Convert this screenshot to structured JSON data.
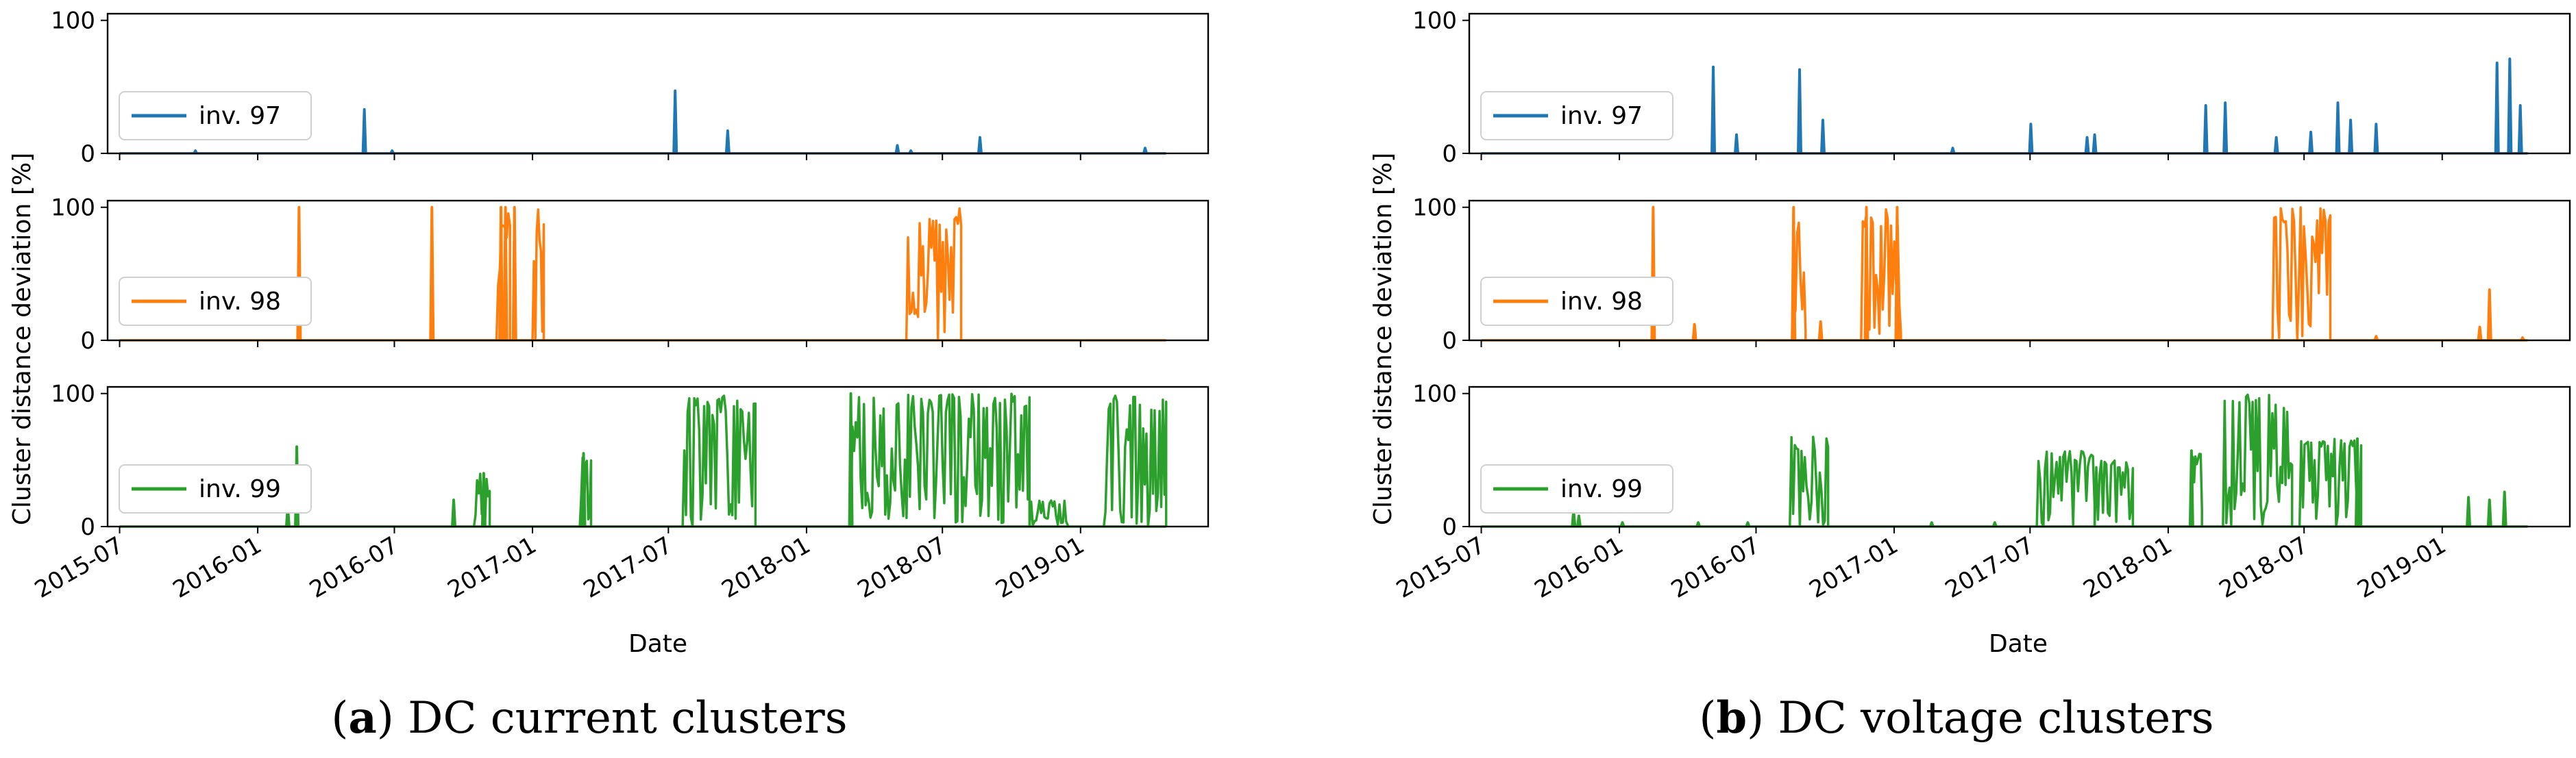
{
  "chart_data": [
    {
      "type": "line",
      "panel": "a",
      "caption_letter": "a",
      "caption_text": "DC current clusters",
      "xlabel": "Date",
      "ylabel": "Cluster distance deviation [%]",
      "ylim": [
        0,
        105
      ],
      "xlim": [
        "2015-06-15",
        "2019-06-20"
      ],
      "x_ticks": [
        "2015-07",
        "2016-01",
        "2016-07",
        "2017-01",
        "2017-07",
        "2018-01",
        "2018-07",
        "2019-01"
      ],
      "y_ticks": [
        "0",
        "100"
      ],
      "legend_position": "center-left",
      "series": [
        {
          "name": "inv. 97",
          "color": "#1f77b4",
          "x_range": [
            "2015-07-01",
            "2019-04-25"
          ],
          "spikes": [
            {
              "date": "2015-10-10",
              "value": 2
            },
            {
              "date": "2016-05-22",
              "value": 33
            },
            {
              "date": "2016-06-28",
              "value": 2
            },
            {
              "date": "2017-07-10",
              "value": 47
            },
            {
              "date": "2017-09-18",
              "value": 17
            },
            {
              "date": "2018-05-02",
              "value": 6
            },
            {
              "date": "2018-05-20",
              "value": 2
            },
            {
              "date": "2018-08-20",
              "value": 12
            },
            {
              "date": "2019-03-28",
              "value": 4
            }
          ]
        },
        {
          "name": "inv. 98",
          "color": "#ff7f0e",
          "x_range": [
            "2015-07-01",
            "2019-04-25"
          ],
          "spikes": [
            {
              "date": "2016-02-25",
              "value": 100
            },
            {
              "date": "2016-08-20",
              "value": 100
            },
            {
              "date": "2016-11-20",
              "value": 100
            },
            {
              "date": "2016-11-26",
              "value": 100
            },
            {
              "date": "2016-12-08",
              "value": 100
            }
          ],
          "blocks": [
            {
              "start": "2016-11-14",
              "end": "2016-12-02",
              "max": 100
            },
            {
              "start": "2017-01-01",
              "end": "2017-01-16",
              "max": 100
            },
            {
              "start": "2018-05-14",
              "end": "2018-07-26",
              "max": 100
            }
          ]
        },
        {
          "name": "inv. 99",
          "color": "#2ca02c",
          "x_range": [
            "2015-07-01",
            "2019-04-25"
          ],
          "spikes": [
            {
              "date": "2016-02-10",
              "value": 15
            },
            {
              "date": "2016-02-22",
              "value": 60
            },
            {
              "date": "2016-09-18",
              "value": 20
            },
            {
              "date": "2016-10-28",
              "value": 40
            },
            {
              "date": "2017-03-10",
              "value": 55
            },
            {
              "date": "2018-03-01",
              "value": 100
            }
          ],
          "blocks": [
            {
              "start": "2016-10-15",
              "end": "2016-11-05",
              "max": 40
            },
            {
              "start": "2017-03-05",
              "end": "2017-03-20",
              "max": 55
            },
            {
              "start": "2017-07-20",
              "end": "2017-10-25",
              "max": 100
            },
            {
              "start": "2018-03-01",
              "end": "2018-10-25",
              "max": 100
            },
            {
              "start": "2018-10-25",
              "end": "2018-12-15",
              "max": 20
            },
            {
              "start": "2019-02-01",
              "end": "2019-04-25",
              "max": 100
            }
          ]
        }
      ]
    },
    {
      "type": "line",
      "panel": "b",
      "caption_letter": "b",
      "caption_text": "DC voltage clusters",
      "xlabel": "Date",
      "ylabel": "Cluster distance deviation [%]",
      "ylim": [
        0,
        105
      ],
      "xlim": [
        "2015-06-15",
        "2019-06-20"
      ],
      "x_ticks": [
        "2015-07",
        "2016-01",
        "2016-07",
        "2017-01",
        "2017-07",
        "2018-01",
        "2018-07",
        "2019-01"
      ],
      "y_ticks": [
        "0",
        "100"
      ],
      "legend_position": "center-left",
      "series": [
        {
          "name": "inv. 97",
          "color": "#1f77b4",
          "x_range": [
            "2015-07-01",
            "2019-04-25"
          ],
          "spikes": [
            {
              "date": "2016-05-05",
              "value": 65
            },
            {
              "date": "2016-06-05",
              "value": 14
            },
            {
              "date": "2016-08-28",
              "value": 63
            },
            {
              "date": "2016-09-28",
              "value": 25
            },
            {
              "date": "2017-03-20",
              "value": 4
            },
            {
              "date": "2017-07-02",
              "value": 22
            },
            {
              "date": "2017-09-15",
              "value": 12
            },
            {
              "date": "2017-09-25",
              "value": 14
            },
            {
              "date": "2018-02-20",
              "value": 36
            },
            {
              "date": "2018-03-18",
              "value": 38
            },
            {
              "date": "2018-05-25",
              "value": 12
            },
            {
              "date": "2018-07-10",
              "value": 16
            },
            {
              "date": "2018-08-15",
              "value": 38
            },
            {
              "date": "2018-09-01",
              "value": 25
            },
            {
              "date": "2018-10-05",
              "value": 22
            },
            {
              "date": "2019-03-15",
              "value": 68
            },
            {
              "date": "2019-04-01",
              "value": 71
            },
            {
              "date": "2019-04-15",
              "value": 36
            }
          ]
        },
        {
          "name": "inv. 98",
          "color": "#ff7f0e",
          "x_range": [
            "2015-07-01",
            "2019-04-25"
          ],
          "spikes": [
            {
              "date": "2016-02-15",
              "value": 100
            },
            {
              "date": "2016-04-10",
              "value": 12
            },
            {
              "date": "2016-08-20",
              "value": 100
            },
            {
              "date": "2016-09-25",
              "value": 14
            },
            {
              "date": "2016-11-25",
              "value": 100
            },
            {
              "date": "2017-01-05",
              "value": 100
            },
            {
              "date": "2018-10-05",
              "value": 3
            },
            {
              "date": "2019-02-20",
              "value": 10
            },
            {
              "date": "2019-03-05",
              "value": 38
            },
            {
              "date": "2019-04-18",
              "value": 2
            }
          ],
          "blocks": [
            {
              "start": "2016-08-18",
              "end": "2016-09-05",
              "max": 100
            },
            {
              "start": "2016-11-18",
              "end": "2017-01-10",
              "max": 100
            },
            {
              "start": "2018-05-20",
              "end": "2018-08-05",
              "max": 100
            }
          ]
        },
        {
          "name": "inv. 99",
          "color": "#2ca02c",
          "x_range": [
            "2015-07-01",
            "2019-04-25"
          ],
          "spikes": [
            {
              "date": "2015-11-01",
              "value": 12
            },
            {
              "date": "2015-11-08",
              "value": 8
            },
            {
              "date": "2016-01-05",
              "value": 3
            },
            {
              "date": "2016-04-15",
              "value": 3
            },
            {
              "date": "2016-06-20",
              "value": 3
            },
            {
              "date": "2017-02-20",
              "value": 3
            },
            {
              "date": "2017-05-15",
              "value": 3
            },
            {
              "date": "2018-02-01",
              "value": 57
            },
            {
              "date": "2018-09-10",
              "value": 66
            },
            {
              "date": "2019-02-05",
              "value": 22
            },
            {
              "date": "2019-03-05",
              "value": 20
            },
            {
              "date": "2019-03-25",
              "value": 26
            }
          ],
          "blocks": [
            {
              "start": "2016-08-15",
              "end": "2016-10-05",
              "max": 68
            },
            {
              "start": "2017-07-10",
              "end": "2017-09-25",
              "max": 57
            },
            {
              "start": "2017-09-25",
              "end": "2017-11-15",
              "max": 50
            },
            {
              "start": "2018-02-01",
              "end": "2018-02-15",
              "max": 57
            },
            {
              "start": "2018-03-15",
              "end": "2018-06-15",
              "max": 100
            },
            {
              "start": "2018-06-25",
              "end": "2018-09-15",
              "max": 66
            }
          ]
        }
      ]
    }
  ]
}
